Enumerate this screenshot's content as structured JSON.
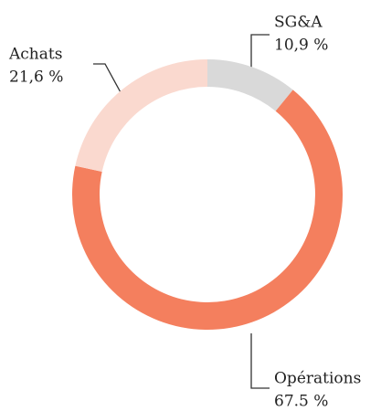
{
  "chart_data": {
    "type": "donut",
    "categories": [
      "SG&A",
      "Opérations",
      "Achats"
    ],
    "values": [
      10.9,
      67.5,
      21.6
    ],
    "value_labels": [
      "10,9 %",
      "67.5 %",
      "21,6 %"
    ],
    "colors": [
      "#d9d9d9",
      "#f47f5e",
      "#fad9cf"
    ]
  }
}
